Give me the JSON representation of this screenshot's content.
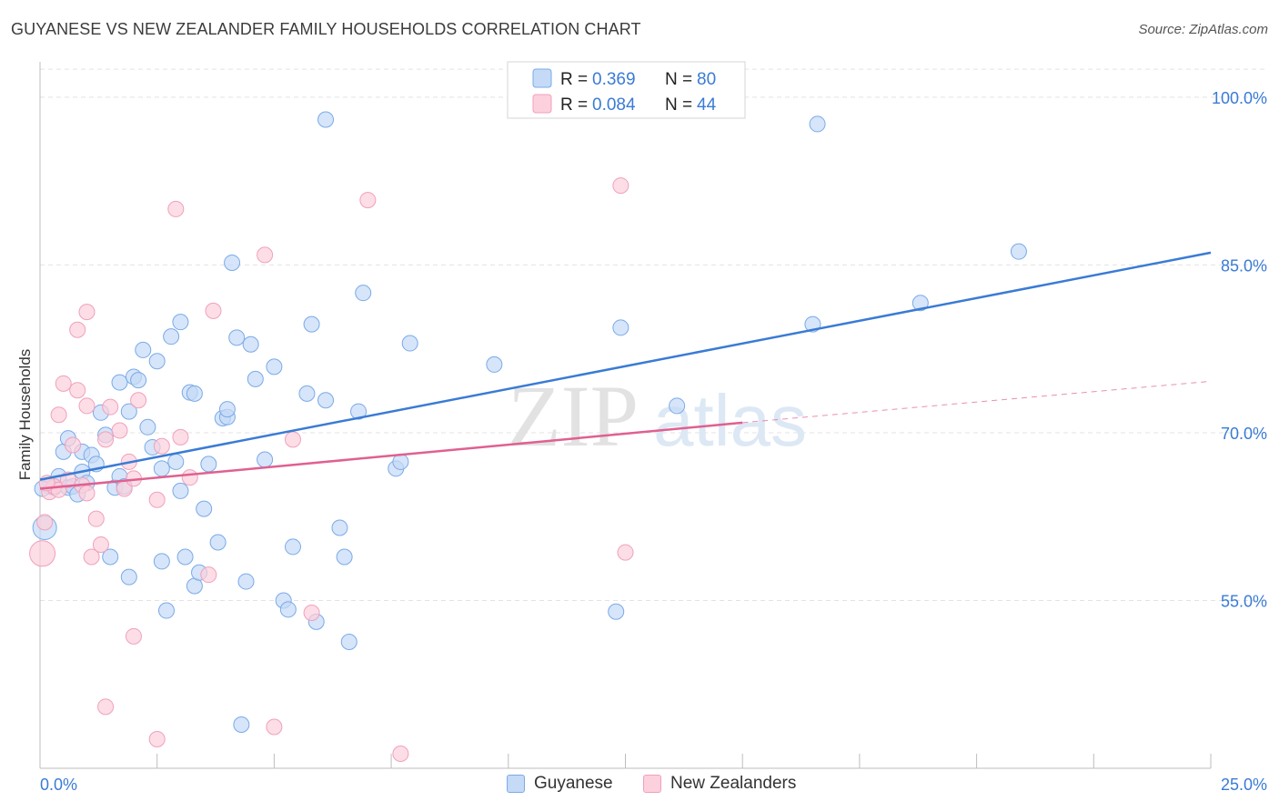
{
  "title": "GUYANESE VS NEW ZEALANDER FAMILY HOUSEHOLDS CORRELATION CHART",
  "source": "Source: ZipAtlas.com",
  "watermark": {
    "zip": "ZIP",
    "atlas": "atlas"
  },
  "legend_stats": [
    {
      "r_label": "R =",
      "r_value": "0.369",
      "n_label": "N =",
      "n_value": "80",
      "color": "#7aaae8",
      "fill": "#c5daf6"
    },
    {
      "r_label": "R =",
      "r_value": "0.084",
      "n_label": "N =",
      "n_value": "44",
      "color": "#f0a0bb",
      "fill": "#fcd0dc"
    }
  ],
  "chart_data": {
    "type": "scatter",
    "title": "GUYANESE VS NEW ZEALANDER FAMILY HOUSEHOLDS CORRELATION CHART",
    "xlabel": "",
    "ylabel": "Family Households",
    "xlim": [
      0,
      25
    ],
    "ylim": [
      40,
      103
    ],
    "x_tick_labels": [
      "0.0%",
      "25.0%"
    ],
    "y_ticks": [
      55,
      70,
      85,
      100
    ],
    "y_tick_labels": [
      "55.0%",
      "70.0%",
      "85.0%",
      "100.0%"
    ],
    "grid": true,
    "series": [
      {
        "name": "Guyanese",
        "color": "#3a7bd5",
        "fill": "#c5daf6",
        "trend": {
          "x": [
            0,
            25
          ],
          "y": [
            65.8,
            86.1
          ]
        },
        "points": [
          [
            0.1,
            61.5
          ],
          [
            0.2,
            65.2
          ],
          [
            0.3,
            65.1
          ],
          [
            0.4,
            66.1
          ],
          [
            0.5,
            68.3
          ],
          [
            0.6,
            65.1
          ],
          [
            0.6,
            69.5
          ],
          [
            0.7,
            65.2
          ],
          [
            0.8,
            64.5
          ],
          [
            0.9,
            66.5
          ],
          [
            0.9,
            68.3
          ],
          [
            1.0,
            65.5
          ],
          [
            1.1,
            68.0
          ],
          [
            1.2,
            67.2
          ],
          [
            1.3,
            71.8
          ],
          [
            1.4,
            69.8
          ],
          [
            1.5,
            58.9
          ],
          [
            1.6,
            65.1
          ],
          [
            1.7,
            66.1
          ],
          [
            1.7,
            74.5
          ],
          [
            1.8,
            65.2
          ],
          [
            1.9,
            57.1
          ],
          [
            1.9,
            71.9
          ],
          [
            2.0,
            75.0
          ],
          [
            2.1,
            74.7
          ],
          [
            2.2,
            77.4
          ],
          [
            2.3,
            70.5
          ],
          [
            2.4,
            68.7
          ],
          [
            2.5,
            76.4
          ],
          [
            2.6,
            66.8
          ],
          [
            2.6,
            58.5
          ],
          [
            2.7,
            54.1
          ],
          [
            2.8,
            78.6
          ],
          [
            2.9,
            67.4
          ],
          [
            3.0,
            64.8
          ],
          [
            3.0,
            79.9
          ],
          [
            3.1,
            58.9
          ],
          [
            3.2,
            73.6
          ],
          [
            3.3,
            73.5
          ],
          [
            3.3,
            56.3
          ],
          [
            3.4,
            57.5
          ],
          [
            3.5,
            63.2
          ],
          [
            3.6,
            67.2
          ],
          [
            3.8,
            60.2
          ],
          [
            3.9,
            71.3
          ],
          [
            4.0,
            71.4
          ],
          [
            4.0,
            72.1
          ],
          [
            4.1,
            85.2
          ],
          [
            4.2,
            78.5
          ],
          [
            4.3,
            43.9
          ],
          [
            4.4,
            56.7
          ],
          [
            4.5,
            77.9
          ],
          [
            4.6,
            74.8
          ],
          [
            4.8,
            67.6
          ],
          [
            5.0,
            75.9
          ],
          [
            5.2,
            55.0
          ],
          [
            5.3,
            54.2
          ],
          [
            5.4,
            59.8
          ],
          [
            5.7,
            73.5
          ],
          [
            5.8,
            79.7
          ],
          [
            5.9,
            53.1
          ],
          [
            6.1,
            72.9
          ],
          [
            6.1,
            98.0
          ],
          [
            6.4,
            61.5
          ],
          [
            6.5,
            58.9
          ],
          [
            6.6,
            51.3
          ],
          [
            6.8,
            71.9
          ],
          [
            6.9,
            82.5
          ],
          [
            7.6,
            66.8
          ],
          [
            7.7,
            67.4
          ],
          [
            7.9,
            78.0
          ],
          [
            9.7,
            76.1
          ],
          [
            12.3,
            54.0
          ],
          [
            12.4,
            79.4
          ],
          [
            13.6,
            72.4
          ],
          [
            16.5,
            79.7
          ],
          [
            16.6,
            97.6
          ],
          [
            18.8,
            81.6
          ],
          [
            20.9,
            86.2
          ],
          [
            0.05,
            65.0
          ]
        ]
      },
      {
        "name": "New Zealanders",
        "color": "#e06090",
        "fill": "#fcd0dc",
        "trend": {
          "x": [
            0,
            15
          ],
          "y": [
            65.0,
            70.9
          ]
        },
        "trend_ext": {
          "x": [
            15,
            25
          ],
          "y": [
            70.9,
            74.6
          ]
        },
        "points": [
          [
            0.05,
            59.2
          ],
          [
            0.1,
            62.0
          ],
          [
            0.2,
            64.7
          ],
          [
            0.3,
            65.2
          ],
          [
            0.4,
            64.9
          ],
          [
            0.4,
            71.6
          ],
          [
            0.5,
            74.4
          ],
          [
            0.6,
            65.8
          ],
          [
            0.7,
            68.9
          ],
          [
            0.8,
            73.8
          ],
          [
            0.8,
            79.2
          ],
          [
            0.9,
            65.3
          ],
          [
            1.0,
            80.8
          ],
          [
            1.0,
            72.4
          ],
          [
            1.0,
            64.6
          ],
          [
            1.1,
            58.9
          ],
          [
            1.2,
            62.3
          ],
          [
            1.3,
            60.0
          ],
          [
            1.4,
            45.5
          ],
          [
            1.4,
            69.4
          ],
          [
            1.5,
            72.3
          ],
          [
            1.7,
            70.2
          ],
          [
            1.8,
            65.0
          ],
          [
            1.9,
            67.4
          ],
          [
            2.0,
            51.8
          ],
          [
            2.0,
            65.9
          ],
          [
            2.1,
            72.9
          ],
          [
            2.5,
            42.6
          ],
          [
            2.5,
            64.0
          ],
          [
            2.6,
            68.8
          ],
          [
            2.9,
            90.0
          ],
          [
            3.0,
            69.6
          ],
          [
            3.2,
            66.0
          ],
          [
            3.6,
            57.3
          ],
          [
            3.7,
            80.9
          ],
          [
            4.8,
            85.9
          ],
          [
            5.0,
            43.7
          ],
          [
            5.4,
            69.4
          ],
          [
            5.8,
            53.9
          ],
          [
            7.0,
            90.8
          ],
          [
            7.7,
            41.3
          ],
          [
            12.4,
            92.1
          ],
          [
            12.5,
            59.3
          ],
          [
            0.15,
            65.5
          ]
        ]
      }
    ]
  }
}
